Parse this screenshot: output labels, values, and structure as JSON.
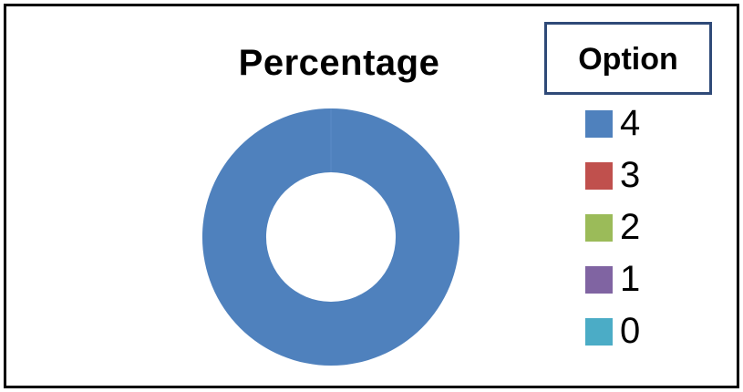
{
  "chart_data": {
    "type": "pie",
    "title": "Percentage",
    "legend_title": "Option",
    "legend_position": "right",
    "categories": [
      "4",
      "3",
      "2",
      "1",
      "0"
    ],
    "values": [
      100,
      0,
      0,
      0,
      0
    ],
    "colors": [
      "#4f81bd",
      "#c0504d",
      "#9bbb59",
      "#8064a2",
      "#4bacc6"
    ]
  }
}
